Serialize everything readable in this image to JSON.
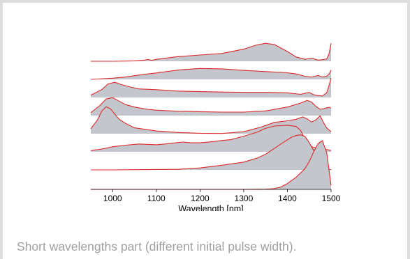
{
  "caption": "Short wavelengths part (different initial pulse width).",
  "colors": {
    "fill": "#c3c6cc",
    "line": "#dd2a2a",
    "caption": "#a0a0a0"
  },
  "chart_data": {
    "type": "area",
    "xlabel": "Wavelength [nm]",
    "ylabel": "",
    "xlim": [
      950,
      1500
    ],
    "xticks": [
      1000,
      1100,
      1200,
      1300,
      1400,
      1500
    ],
    "yaxis": "none",
    "grid": false,
    "offset_stack": true,
    "series": [
      {
        "x": [
          950,
          1000,
          1030,
          1050,
          1070,
          1080,
          1090,
          1100,
          1150,
          1200,
          1250,
          1300,
          1330,
          1350,
          1370,
          1400,
          1420,
          1440,
          1455,
          1470,
          1480,
          1490,
          1495,
          1500
        ],
        "y": [
          0.0,
          0.0,
          0.01,
          0.02,
          0.05,
          0.09,
          0.05,
          0.1,
          0.24,
          0.32,
          0.4,
          0.62,
          0.84,
          0.92,
          0.86,
          0.5,
          0.22,
          0.1,
          0.16,
          0.06,
          0.08,
          0.12,
          0.35,
          0.92
        ]
      },
      {
        "x": [
          950,
          1000,
          1030,
          1060,
          1080,
          1100,
          1150,
          1200,
          1250,
          1300,
          1350,
          1400,
          1420,
          1440,
          1455,
          1470,
          1480,
          1490,
          1495,
          1500
        ],
        "y": [
          0.0,
          0.06,
          0.12,
          0.22,
          0.28,
          0.33,
          0.48,
          0.56,
          0.54,
          0.46,
          0.4,
          0.34,
          0.28,
          0.16,
          0.12,
          0.2,
          0.12,
          0.16,
          0.26,
          0.48
        ]
      },
      {
        "x": [
          950,
          975,
          990,
          1005,
          1020,
          1040,
          1060,
          1100,
          1150,
          1200,
          1250,
          1300,
          1350,
          1400,
          1430,
          1450,
          1460,
          1470,
          1480,
          1490,
          1495,
          1500
        ],
        "y": [
          0.12,
          0.4,
          0.7,
          0.78,
          0.66,
          0.54,
          0.44,
          0.4,
          0.33,
          0.3,
          0.28,
          0.26,
          0.26,
          0.24,
          0.16,
          0.26,
          0.14,
          0.1,
          0.08,
          0.24,
          0.6,
          1.0
        ]
      },
      {
        "x": [
          950,
          970,
          985,
          1000,
          1015,
          1030,
          1050,
          1080,
          1100,
          1150,
          1200,
          1250,
          1300,
          1350,
          1400,
          1430,
          1445,
          1455,
          1465,
          1475,
          1485,
          1490,
          1495,
          1500
        ],
        "y": [
          0.15,
          0.5,
          0.85,
          0.92,
          0.74,
          0.56,
          0.44,
          0.32,
          0.28,
          0.22,
          0.2,
          0.18,
          0.18,
          0.24,
          0.44,
          0.64,
          0.78,
          0.7,
          0.48,
          0.32,
          0.36,
          0.4,
          0.42,
          0.38
        ]
      },
      {
        "x": [
          950,
          965,
          975,
          985,
          995,
          1005,
          1015,
          1030,
          1050,
          1100,
          1150,
          1200,
          1250,
          1300,
          1340,
          1370,
          1400,
          1420,
          1435,
          1445,
          1455,
          1465,
          1475,
          1482,
          1490,
          1500
        ],
        "y": [
          0.25,
          0.7,
          1.15,
          1.38,
          1.28,
          1.0,
          0.74,
          0.52,
          0.3,
          0.14,
          0.06,
          0.02,
          0.01,
          0.1,
          0.34,
          0.58,
          0.66,
          0.74,
          0.86,
          0.76,
          0.6,
          0.7,
          0.92,
          0.6,
          0.3,
          0.1
        ]
      },
      {
        "x": [
          950,
          980,
          1000,
          1030,
          1060,
          1100,
          1130,
          1160,
          1180,
          1200,
          1230,
          1250,
          1270,
          1300,
          1330,
          1350,
          1370,
          1400,
          1420,
          1430,
          1440,
          1450,
          1460,
          1470,
          1480,
          1490,
          1500
        ],
        "y": [
          0.06,
          0.16,
          0.26,
          0.34,
          0.4,
          0.36,
          0.42,
          0.5,
          0.46,
          0.46,
          0.52,
          0.58,
          0.62,
          0.8,
          1.0,
          1.2,
          1.32,
          1.36,
          1.3,
          1.1,
          0.66,
          0.34,
          0.22,
          0.2,
          0.18,
          0.12,
          0.06
        ]
      },
      {
        "x": [
          950,
          1000,
          1050,
          1100,
          1150,
          1200,
          1250,
          1300,
          1330,
          1350,
          1370,
          1390,
          1410,
          1420,
          1430,
          1440,
          1450,
          1460,
          1470,
          1480,
          1490,
          1500
        ],
        "y": [
          0.0,
          0.0,
          0.01,
          0.02,
          0.03,
          0.1,
          0.24,
          0.4,
          0.6,
          0.8,
          1.1,
          1.4,
          1.68,
          1.76,
          1.8,
          1.72,
          1.4,
          1.0,
          0.66,
          0.3,
          0.08,
          0.0
        ]
      },
      {
        "x": [
          950,
          1200,
          1300,
          1350,
          1370,
          1385,
          1400,
          1420,
          1440,
          1450,
          1460,
          1470,
          1480,
          1490,
          1500
        ],
        "y": [
          0.0,
          0.0,
          0.0,
          0.01,
          0.04,
          0.12,
          0.3,
          0.62,
          1.06,
          1.42,
          1.92,
          2.34,
          2.5,
          1.9,
          0.2
        ]
      }
    ]
  }
}
